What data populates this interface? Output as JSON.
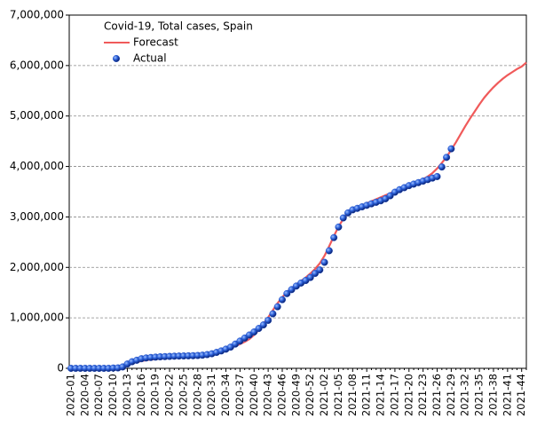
{
  "chart_data": {
    "type": "line",
    "title": "Covid-19, Total cases, Spain",
    "categories": [
      "2020-01",
      null,
      null,
      "2020-04",
      null,
      null,
      "2020-07",
      null,
      null,
      "2020-10",
      null,
      null,
      "2020-13",
      null,
      null,
      "2020-16",
      null,
      null,
      "2020-19",
      null,
      null,
      "2020-22",
      null,
      null,
      "2020-25",
      null,
      null,
      "2020-28",
      null,
      null,
      "2020-31",
      null,
      null,
      "2020-34",
      null,
      null,
      "2020-37",
      null,
      null,
      "2020-40",
      null,
      null,
      "2020-43",
      null,
      null,
      "2020-46",
      null,
      null,
      "2020-49",
      null,
      null,
      "2020-52",
      null,
      null,
      "2021-02",
      null,
      null,
      "2021-05",
      null,
      null,
      "2021-08",
      null,
      null,
      "2021-11",
      null,
      null,
      "2021-14",
      null,
      null,
      "2021-17",
      null,
      null,
      "2021-20",
      null,
      null,
      "2021-23",
      null,
      null,
      "2021-26",
      null,
      null,
      "2021-29",
      null,
      null,
      "2021-32",
      null,
      null,
      "2021-35",
      null,
      null,
      "2021-38",
      null,
      null,
      "2021-41",
      null,
      null,
      "2021-44",
      null
    ],
    "series": [
      {
        "name": "Forecast",
        "color": "#f05a5a",
        "style": "line",
        "values": [
          0,
          0,
          0,
          0,
          0,
          0,
          0,
          0,
          1000,
          4000,
          12000,
          35000,
          70000,
          100000,
          125000,
          145000,
          160000,
          172000,
          182000,
          190000,
          198000,
          205000,
          212000,
          218000,
          225000,
          232000,
          240000,
          250000,
          262000,
          276000,
          293000,
          315000,
          340000,
          370000,
          405000,
          440000,
          480000,
          525000,
          580000,
          660000,
          760000,
          880000,
          1010000,
          1150000,
          1290000,
          1410000,
          1510000,
          1590000,
          1660000,
          1730000,
          1800000,
          1880000,
          1970000,
          2080000,
          2230000,
          2420000,
          2620000,
          2810000,
          2960000,
          3070000,
          3140000,
          3190000,
          3230000,
          3270000,
          3310000,
          3350000,
          3390000,
          3430000,
          3470000,
          3510000,
          3550000,
          3590000,
          3630000,
          3670000,
          3710000,
          3750000,
          3800000,
          3870000,
          3960000,
          4070000,
          4190000,
          4330000,
          4480000,
          4640000,
          4800000,
          4950000,
          5090000,
          5230000,
          5360000,
          5470000,
          5570000,
          5660000,
          5740000,
          5810000,
          5870000,
          5930000,
          5980000,
          6060000
        ]
      },
      {
        "name": "Actual",
        "color": "#1f4fc8",
        "style": "markers",
        "values": [
          0,
          0,
          0,
          0,
          0,
          0,
          0,
          0,
          100,
          5000,
          8000,
          28000,
          85000,
          130000,
          160000,
          190000,
          205000,
          215000,
          222000,
          228000,
          232000,
          236000,
          240000,
          243000,
          245000,
          248000,
          250000,
          254000,
          260000,
          272000,
          288000,
          315000,
          345000,
          380000,
          420000,
          480000,
          540000,
          600000,
          660000,
          720000,
          790000,
          860000,
          950000,
          1080000,
          1220000,
          1360000,
          1480000,
          1560000,
          1630000,
          1690000,
          1740000,
          1800000,
          1880000,
          1950000,
          2100000,
          2330000,
          2590000,
          2800000,
          2980000,
          3080000,
          3140000,
          3170000,
          3200000,
          3230000,
          3260000,
          3290000,
          3320000,
          3360000,
          3420000,
          3490000,
          3540000,
          3580000,
          3620000,
          3650000,
          3680000,
          3710000,
          3740000,
          3770000,
          3800000,
          3990000,
          4180000,
          4350000,
          null,
          null,
          null,
          null,
          null,
          null,
          null,
          null,
          null,
          null,
          null,
          null,
          null,
          null,
          null,
          null
        ]
      }
    ],
    "ylim": [
      0,
      7000000
    ],
    "yticks": [
      0,
      {
        "value": 1000000,
        "label": "1,000,000"
      },
      {
        "value": 2000000,
        "label": "2,000,000"
      },
      {
        "value": 3000000,
        "label": "3,000,000"
      },
      {
        "value": 4000000,
        "label": "4,000,000"
      },
      {
        "value": 5000000,
        "label": "5,000,000"
      },
      {
        "value": 6000000,
        "label": "6,000,000"
      },
      {
        "value": 7000000,
        "label": "7,000,000"
      }
    ],
    "grid": true
  }
}
